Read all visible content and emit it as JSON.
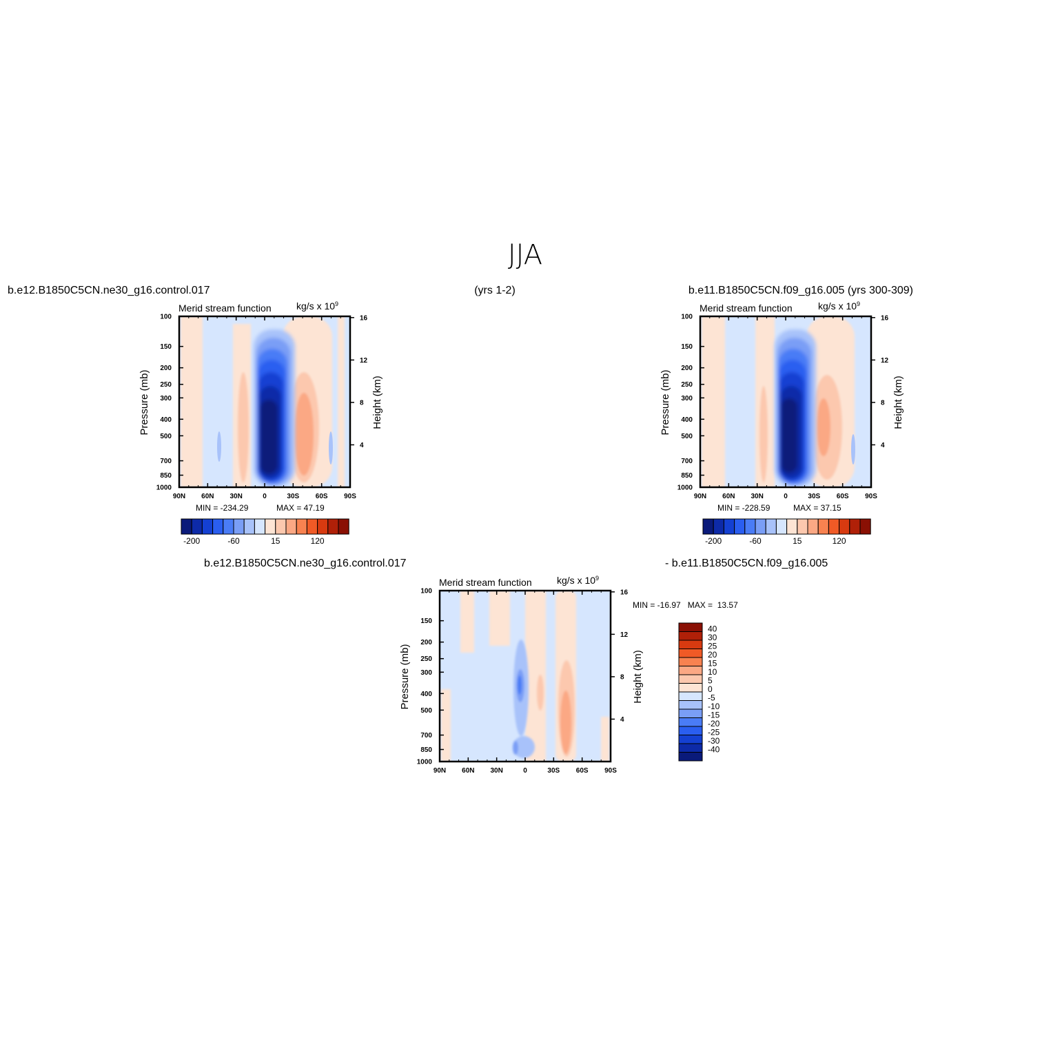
{
  "main_title": "JJA",
  "chart_data": [
    {
      "type": "heatmap",
      "panel": "ctl",
      "case_label": "b.e12.B1850C5CN.ne30_g16.control.017",
      "years_label": "(yrs 1-2)",
      "subtitle": "Merid stream function",
      "units": "kg/s x 10",
      "units_exp": "9",
      "ylabel": "Pressure (mb)",
      "ylabel_right": "Height (km)",
      "x_ticks": [
        "90N",
        "60N",
        "30N",
        "0",
        "30S",
        "60S",
        "90S"
      ],
      "x_values": [
        90,
        60,
        30,
        0,
        -30,
        -60,
        -90
      ],
      "y_ticks": [
        100,
        150,
        200,
        250,
        300,
        400,
        500,
        700,
        850,
        1000
      ],
      "y_right_ticks": [
        4,
        8,
        12,
        16
      ],
      "ylim": [
        1000,
        100
      ],
      "min_label": "MIN = -234.29",
      "max_label": "MAX =  47.19",
      "min": -234.29,
      "max": 47.19,
      "cells": [
        {
          "lat": 60,
          "p": 550,
          "v": -15
        },
        {
          "lat": 20,
          "p": 500,
          "v": 30
        },
        {
          "lat": 20,
          "p": 350,
          "v": 15
        },
        {
          "lat": 0,
          "p": 450,
          "v": -234
        },
        {
          "lat": -5,
          "p": 250,
          "v": -120
        },
        {
          "lat": -40,
          "p": 450,
          "v": 47
        },
        {
          "lat": -40,
          "p": 350,
          "v": 20
        },
        {
          "lat": -70,
          "p": 600,
          "v": -10
        }
      ]
    },
    {
      "type": "heatmap",
      "panel": "obs",
      "case_label": "b.e11.B1850C5CN.f09_g16.005 (yrs 300-309)",
      "subtitle": "Merid stream function",
      "units": "kg/s x 10",
      "units_exp": "9",
      "ylabel": "Pressure (mb)",
      "ylabel_right": "Height (km)",
      "x_ticks": [
        "90N",
        "60N",
        "30N",
        "0",
        "30S",
        "60S",
        "90S"
      ],
      "x_values": [
        90,
        60,
        30,
        0,
        -30,
        -60,
        -90
      ],
      "y_ticks": [
        100,
        150,
        200,
        250,
        300,
        400,
        500,
        700,
        850,
        1000
      ],
      "y_right_ticks": [
        4,
        8,
        12,
        16
      ],
      "ylim": [
        1000,
        100
      ],
      "min_label": "MIN = -228.59",
      "max_label": "MAX =  37.15",
      "min": -228.59,
      "max": 37.15,
      "cells": [
        {
          "lat": 20,
          "p": 500,
          "v": 20
        },
        {
          "lat": 0,
          "p": 450,
          "v": -228
        },
        {
          "lat": -40,
          "p": 450,
          "v": 37
        },
        {
          "lat": -70,
          "p": 600,
          "v": -10
        }
      ]
    },
    {
      "type": "heatmap",
      "panel": "diff",
      "case_label_left": "b.e12.B1850C5CN.ne30_g16.control.017",
      "case_label_right": "- b.e11.B1850C5CN.f09_g16.005",
      "subtitle": "Merid stream function",
      "units": "kg/s x 10",
      "units_exp": "9",
      "ylabel": "Pressure (mb)",
      "ylabel_right": "Height (km)",
      "x_ticks": [
        "90N",
        "60N",
        "30N",
        "0",
        "30S",
        "60S",
        "90S"
      ],
      "x_values": [
        90,
        60,
        30,
        0,
        -30,
        -60,
        -90
      ],
      "y_ticks": [
        100,
        150,
        200,
        250,
        300,
        400,
        500,
        700,
        850,
        1000
      ],
      "y_right_ticks": [
        4,
        8,
        12,
        16
      ],
      "ylim": [
        1000,
        100
      ],
      "min_max_label": "MIN = -16.97   MAX =  13.57",
      "min": -16.97,
      "max": 13.57,
      "cells": [
        {
          "lat": -5,
          "p": 400,
          "v": -17
        },
        {
          "lat": 15,
          "p": 400,
          "v": 8
        },
        {
          "lat": -45,
          "p": 600,
          "v": 14
        }
      ]
    }
  ],
  "colorbar_main": {
    "labels": [
      "-200",
      "-60",
      "15",
      "120"
    ],
    "colors": [
      "#0a1a7a",
      "#0d2aa8",
      "#1440d2",
      "#2a5ef0",
      "#4a7cf6",
      "#7a9ef6",
      "#a8c2fa",
      "#d6e6fe",
      "#fde4d4",
      "#fcc8ae",
      "#fba884",
      "#f88250",
      "#f05a26",
      "#d83a10",
      "#b02008",
      "#8a1004"
    ]
  },
  "colorbar_diff": {
    "labels": [
      "40",
      "30",
      "25",
      "20",
      "15",
      "10",
      "5",
      "0",
      "-5",
      "-10",
      "-15",
      "-20",
      "-25",
      "-30",
      "-40"
    ],
    "colors": [
      "#8a1004",
      "#b02008",
      "#d83a10",
      "#f05a26",
      "#f88250",
      "#fba884",
      "#fcc8ae",
      "#fde4d4",
      "#d6e6fe",
      "#a8c2fa",
      "#7a9ef6",
      "#4a7cf6",
      "#2a5ef0",
      "#1440d2",
      "#0d2aa8",
      "#0a1a7a"
    ]
  }
}
